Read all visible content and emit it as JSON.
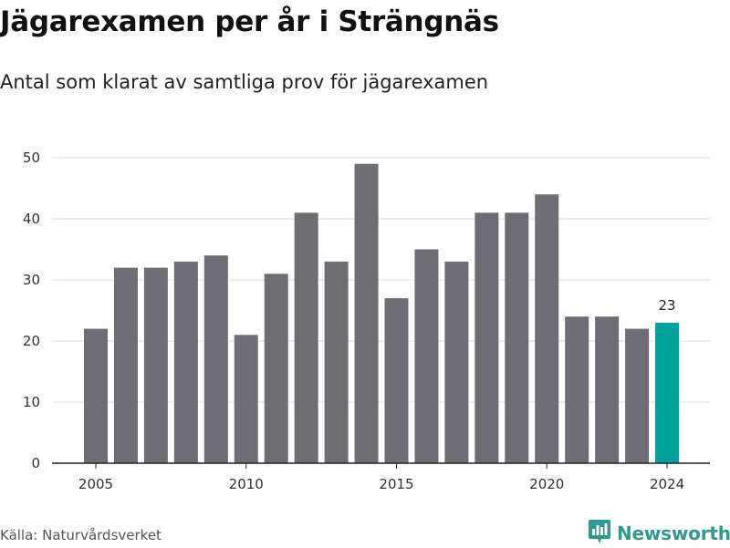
{
  "title": "Jägarexamen per år i Strängnäs",
  "subtitle": "Antal som klarat av samtliga prov för jägarexamen",
  "source": "Källa: Naturvårdsverket",
  "brand": {
    "label": "Newsworthy",
    "icon": "newsworthy-logo-icon",
    "color": "#2f9a8f"
  },
  "colors": {
    "bar": "#6e6d73",
    "highlight": "#00a39a",
    "grid": "#dddddd",
    "axis": "#222222"
  },
  "chart_data": {
    "type": "bar",
    "title": "Jägarexamen per år i Strängnäs",
    "subtitle": "Antal som klarat av samtliga prov för jägarexamen",
    "xlabel": "",
    "ylabel": "",
    "ylim": [
      0,
      50
    ],
    "yticks": [
      0,
      10,
      20,
      30,
      40,
      50
    ],
    "xticks": [
      2005,
      2010,
      2015,
      2020,
      2024
    ],
    "categories": [
      2005,
      2006,
      2007,
      2008,
      2009,
      2010,
      2011,
      2012,
      2013,
      2014,
      2015,
      2016,
      2017,
      2018,
      2019,
      2020,
      2021,
      2022,
      2023,
      2024
    ],
    "values": [
      22,
      32,
      32,
      33,
      34,
      21,
      31,
      41,
      33,
      49,
      27,
      35,
      33,
      41,
      41,
      44,
      24,
      24,
      22,
      23
    ],
    "highlight_category": 2024,
    "data_labels": [
      {
        "category": 2024,
        "text": "23"
      }
    ],
    "grid": true,
    "legend": "none"
  }
}
